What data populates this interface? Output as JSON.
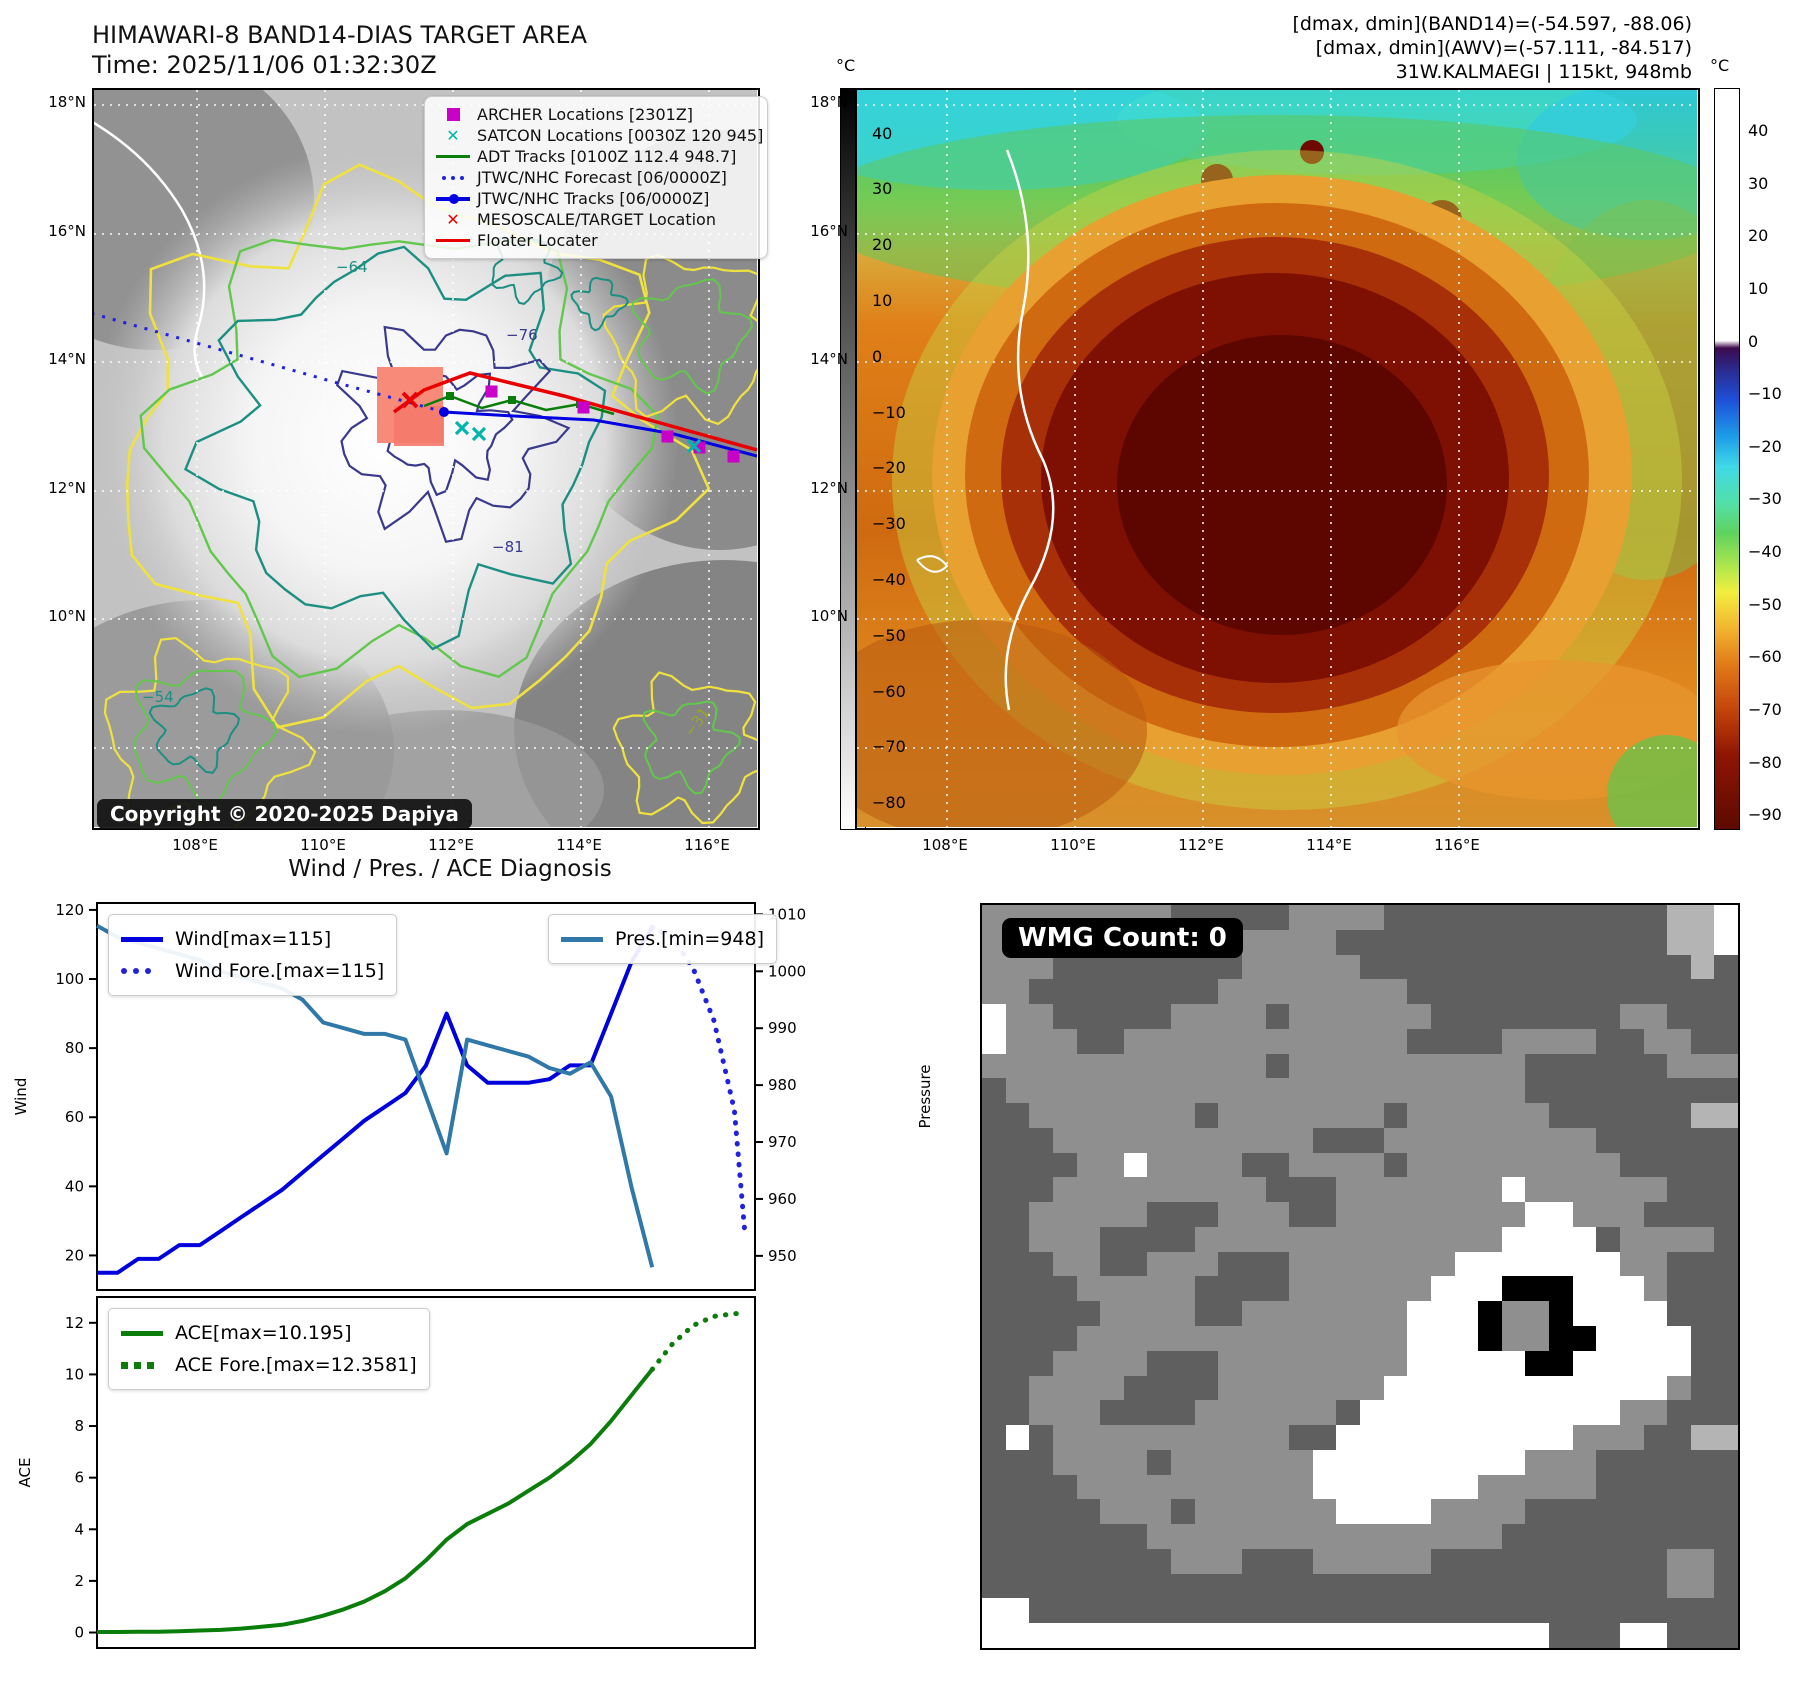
{
  "panel_band14": {
    "title_line1": "HIMAWARI-8 BAND14-DIAS TARGET AREA",
    "title_line2": "Time: 2025/11/06 01:32:30Z",
    "copyright": "Copyright © 2020-2025 Dapiya",
    "legend": [
      {
        "label": "ARCHER Locations [2301Z]",
        "marker": "square",
        "color": "#c800c8"
      },
      {
        "label": "SATCON Locations [0030Z 120 945]",
        "marker": "x",
        "color": "#00b5ad"
      },
      {
        "label": "ADT Tracks [0100Z 112.4 948.7]",
        "marker": "line",
        "color": "#0a7d0a"
      },
      {
        "label": "JTWC/NHC Forecast [06/0000Z]",
        "marker": "dotted",
        "color": "#2020e0"
      },
      {
        "label": "JTWC/NHC Tracks [06/0000Z]",
        "marker": "line-dot",
        "color": "#0000e0"
      },
      {
        "label": "MESOSCALE/TARGET Location",
        "marker": "x-bold",
        "color": "#e80000"
      },
      {
        "label": "Floater Locater",
        "marker": "line",
        "color": "#e80000"
      }
    ],
    "contour_labels": [
      "−64",
      "−76",
      "−81",
      "−54",
      "−31"
    ],
    "colorbar": {
      "unit": "°C",
      "ticks": [
        40,
        30,
        20,
        10,
        0,
        -10,
        -20,
        -30,
        -40,
        -50,
        -60,
        -70,
        -80
      ]
    }
  },
  "panel_awv": {
    "header_line1": "[dmax, dmin](BAND14)=(-54.597, -88.06)",
    "header_line2": "[dmax, dmin](AWV)=(-57.111, -84.517)",
    "header_line3": "31W.KALMAEGI | 115kt, 948mb",
    "colorbar": {
      "unit": "°C",
      "ticks": [
        40,
        30,
        20,
        10,
        0,
        -10,
        -20,
        -30,
        -40,
        -50,
        -60,
        -70,
        -80,
        -90
      ]
    }
  },
  "geo_axes": {
    "lat_labels": [
      "18°N",
      "16°N",
      "14°N",
      "12°N",
      "10°N"
    ],
    "lon_labels": [
      "108°E",
      "110°E",
      "112°E",
      "114°E",
      "116°E"
    ]
  },
  "chart_data": [
    {
      "type": "line",
      "title": "Wind / Pres. / ACE Diagnosis",
      "ylabel_left": "Wind",
      "ylabel_right": "Pressure",
      "x_domain": [
        0,
        32
      ],
      "y_left": {
        "lim": [
          10,
          122
        ],
        "ticks": [
          20,
          40,
          60,
          80,
          100,
          120
        ]
      },
      "y_right": {
        "lim": [
          944,
          1012
        ],
        "ticks": [
          950,
          960,
          970,
          980,
          990,
          1000,
          1010
        ]
      },
      "grid": false,
      "series": [
        {
          "name": "Wind[max=115]",
          "axis": "left",
          "style": "solid",
          "color": "#0000dd",
          "x": [
            0,
            1,
            2,
            3,
            4,
            5,
            6,
            7,
            8,
            9,
            10,
            11,
            12,
            13,
            14,
            15,
            16,
            17,
            18,
            19,
            20,
            21,
            22,
            23,
            24,
            25,
            26,
            27
          ],
          "values": [
            15,
            15,
            19,
            19,
            23,
            23,
            27,
            31,
            35,
            39,
            44,
            49,
            54,
            59,
            63,
            67,
            75,
            90,
            75,
            70,
            70,
            70,
            71,
            75,
            75,
            90,
            105,
            115
          ]
        },
        {
          "name": "Wind Fore.[max=115]",
          "axis": "left",
          "style": "dotted",
          "color": "#2222dd",
          "x": [
            27,
            28,
            29,
            30,
            31,
            31.5
          ],
          "values": [
            115,
            112,
            103,
            88,
            62,
            27
          ]
        },
        {
          "name": "Pres.[min=948]",
          "axis": "right",
          "style": "solid",
          "color": "#3078a8",
          "x": [
            0,
            1,
            2,
            3,
            4,
            5,
            6,
            7,
            8,
            9,
            10,
            11,
            12,
            13,
            14,
            15,
            16,
            17,
            18,
            19,
            20,
            21,
            22,
            23,
            24,
            25,
            26,
            27
          ],
          "values": [
            1008,
            1006,
            1005,
            1004,
            1003,
            1002,
            1000,
            999,
            998,
            997,
            995,
            991,
            990,
            989,
            989,
            988,
            978,
            968,
            988,
            987,
            986,
            985,
            983,
            982,
            984,
            978,
            962,
            948
          ]
        }
      ]
    },
    {
      "type": "line",
      "ylabel_left": "ACE",
      "x_domain": [
        0,
        32
      ],
      "y_left": {
        "lim": [
          -0.6,
          13
        ],
        "ticks": [
          0,
          2,
          4,
          6,
          8,
          10,
          12
        ]
      },
      "grid": false,
      "series": [
        {
          "name": "ACE[max=10.195]",
          "axis": "left",
          "style": "solid",
          "color": "#0a7d0a",
          "x": [
            0,
            1,
            2,
            3,
            4,
            5,
            6,
            7,
            8,
            9,
            10,
            11,
            12,
            13,
            14,
            15,
            16,
            17,
            18,
            19,
            20,
            21,
            22,
            23,
            24,
            25,
            26,
            27
          ],
          "values": [
            0.02,
            0.02,
            0.03,
            0.03,
            0.05,
            0.08,
            0.1,
            0.15,
            0.22,
            0.3,
            0.45,
            0.65,
            0.9,
            1.2,
            1.6,
            2.1,
            2.8,
            3.6,
            4.2,
            4.6,
            5.0,
            5.5,
            6.0,
            6.6,
            7.3,
            8.2,
            9.2,
            10.195
          ]
        },
        {
          "name": "ACE Fore.[max=12.3581]",
          "axis": "left",
          "style": "dotted",
          "color": "#0a7d0a",
          "x": [
            27,
            28,
            29,
            30,
            31,
            31.5
          ],
          "values": [
            10.195,
            11.2,
            11.9,
            12.25,
            12.358,
            12.358
          ]
        }
      ]
    }
  ],
  "wmg": {
    "badge": "WMG Count: 0",
    "palette": {
      "g": "#8f8f8f",
      "d": "#5f5f5f",
      "w": "#ffffff",
      "b": "#000000",
      "l": "#b4b4b4"
    },
    "rows": [
      "ggggggggdddddggggddddddddddddllw",
      "ggggdddddddggggddddddddddddddllw",
      "gggddddddddgggggddddddddddddddld",
      "ggddddddddggggggggdddddddddddddd",
      "wggdddddggggdggggggddddddddggddd",
      "wgggddggggggggggggddddggggddggdd",
      "ggggggggggggdggggggggggddddddggg",
      "dggggggggggggggggggggggddddddddd",
      "ddgggggggdgggggggdggggggddddddll",
      "dddgggggggggggdddgggggggggdddddd",
      "ddddggwggggddggggdgggggggggddddd",
      "dddgggggggggdddgggggggwggggggddd",
      "ddgggggdddgggddggggggggwwgggdddd",
      "ddgggddddgggggggggggggwwwwdggggd",
      "dddggddgggdddgggggggwwwwwwwggddd",
      "ddddgggggddddggggggwwwbbbwwwgddd",
      "dddddggggddgggggggwwwbggbwwwwddd",
      "ddddggggggggggggggwwwbggbbwwwwdd",
      "dddggggdddggggggggwwwwwbbwwwwwdd",
      "ddggggddddgggggggwwwwwwwwwwwwgdd",
      "ddgggddddggggggdwwwwwwwwwwwggddd",
      "dwdggggggggggddwwwwwwwwwwgggddll",
      "dddggggdggggggwwwwwwwwwgggdddddd",
      "ddddggggggggggwwwwwwwgggggdddddd",
      "dddddgggdggggggwwwwggggddddddddd",
      "dddddddgggggggggggggggdddddddddd",
      "ddddddddgggdddgggggddddddddddggd",
      "dddddddddddddddddddddddddddddggd",
      "wwdddddddddddddddddddddddddddddd",
      "wwwwwwwwwwwwwwwwwwwwwwwwdddwwddd"
    ]
  }
}
